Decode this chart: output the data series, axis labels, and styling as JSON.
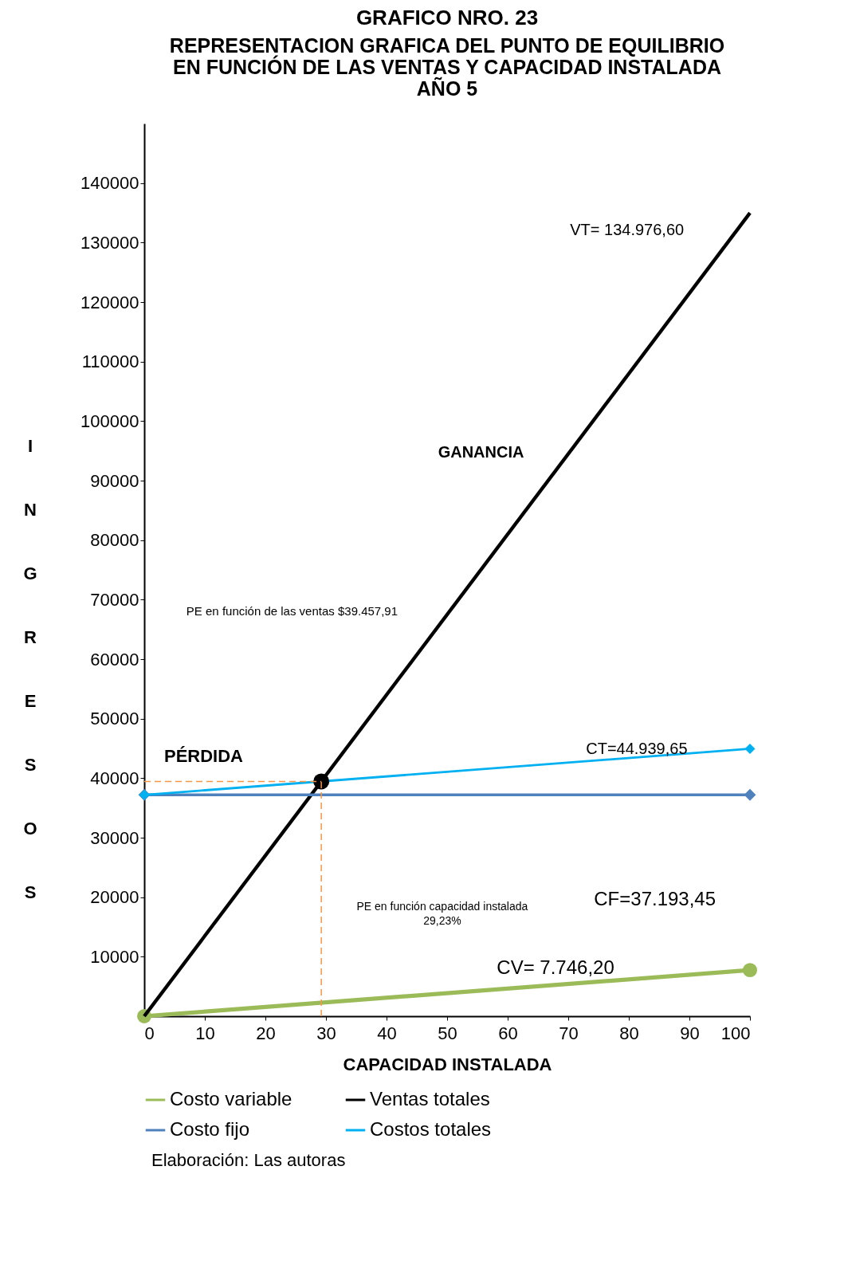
{
  "chart_data": {
    "type": "line",
    "title": "GRAFICO NRO. 23",
    "subtitle": "REPRESENTACION GRAFICA DEL PUNTO DE EQUILIBRIO\nEN FUNCIÓN DE LAS VENTAS Y  CAPACIDAD INSTALADA\nAÑO 5",
    "xlabel": "CAPACIDAD INSTALADA",
    "ylabel": "INGRESOS",
    "x": [
      0,
      100
    ],
    "xlim": [
      0,
      100
    ],
    "xticks": [
      0,
      10,
      20,
      30,
      40,
      50,
      60,
      70,
      80,
      90,
      100
    ],
    "ylim": [
      0,
      150000
    ],
    "yticks": [
      10000,
      20000,
      30000,
      40000,
      50000,
      60000,
      70000,
      80000,
      90000,
      100000,
      110000,
      120000,
      130000,
      140000
    ],
    "grid": false,
    "legend": "bottom",
    "series": [
      {
        "name": "Costo variable",
        "color": "#9bbb59",
        "values": [
          0,
          7746.2
        ],
        "marker": "circle"
      },
      {
        "name": "Ventas totales",
        "color": "#000000",
        "values": [
          0,
          134976.6
        ],
        "marker": "none"
      },
      {
        "name": "Costo fijo",
        "color": "#4f81bd",
        "values": [
          37193.45,
          37193.45
        ],
        "marker": "diamond"
      },
      {
        "name": "Costos totales",
        "color": "#00b0f0",
        "values": [
          37193.45,
          44939.65
        ],
        "marker": "diamond"
      },
      {
        "type": "scatter",
        "color": "#000000",
        "x": [
          29.23
        ],
        "values": [
          39457.91
        ],
        "marker": "circle"
      }
    ],
    "ref_lines": [
      {
        "axis": "y",
        "value": 39457.91,
        "color": "#f79646",
        "line_style": "dashed"
      },
      {
        "axis": "x",
        "value": 29.23,
        "color": "#f79646",
        "line_style": "dashed"
      }
    ],
    "annotations": [
      "VT= 134.976,60",
      "GANANCIA",
      "PE en función de las ventas   $39.457,91",
      "PÉRDIDA",
      "CT=44.939,65",
      "CF=37.193,45",
      "PE  en función  capacidad instalada\n29,23%",
      "CV= 7.746,20",
      "Elaboración: Las autoras"
    ]
  }
}
